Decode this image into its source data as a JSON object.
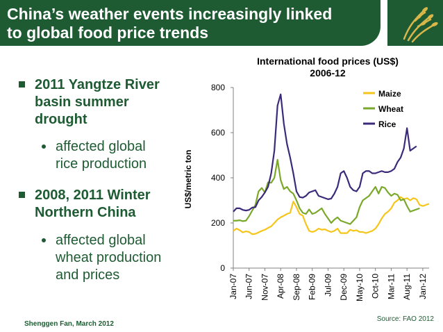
{
  "slide": {
    "title_line1": "China’s weather events increasingly linked",
    "title_line2": "to global food price trends",
    "bullets": [
      {
        "lines": [
          "2011 Yangtze River",
          "basin summer",
          "drought"
        ],
        "sub": [
          "affected global",
          "rice production"
        ]
      },
      {
        "lines": [
          "2008, 2011 Winter",
          "Northern China"
        ],
        "sub": [
          "affected global",
          "wheat production",
          "and prices"
        ]
      }
    ],
    "footer": "Shenggen Fan, March 2012",
    "source": "Source: FAO 2012",
    "colors": {
      "brand": "#1e5b33",
      "maize": "#f5c518",
      "wheat": "#7aa82a",
      "rice": "#3b2a7a"
    }
  },
  "chart_data": {
    "type": "line",
    "title": "International food prices (US$)",
    "subtitle": "2006-12",
    "ylabel": "US$/metric ton",
    "ylim": [
      0,
      800
    ],
    "yticks": [
      0,
      200,
      400,
      600,
      800
    ],
    "xticks": [
      "Jan-07",
      "Jun-07",
      "Nov-07",
      "Apr-08",
      "Sep-08",
      "Feb-09",
      "Jul-09",
      "Dec-09",
      "May-10",
      "Oct-10",
      "Mar-11",
      "Aug-11",
      "Jan-12"
    ],
    "x_months_from_jan07": [
      0,
      5,
      10,
      15,
      20,
      25,
      30,
      35,
      40,
      45,
      50,
      55,
      60
    ],
    "legend_position": "top-right",
    "series": [
      {
        "name": "Maize",
        "values": [
          165,
          175,
          168,
          158,
          163,
          160,
          150,
          152,
          158,
          165,
          170,
          178,
          185,
          200,
          215,
          225,
          232,
          240,
          245,
          295,
          270,
          240,
          232,
          195,
          165,
          160,
          165,
          175,
          170,
          172,
          165,
          160,
          165,
          175,
          155,
          155,
          155,
          170,
          165,
          168,
          160,
          160,
          155,
          160,
          165,
          175,
          195,
          220,
          240,
          250,
          265,
          290,
          300,
          315,
          305,
          310,
          300,
          310,
          305,
          280,
          275,
          280,
          285
        ]
      },
      {
        "name": "Wheat",
        "values": [
          210,
          210,
          212,
          208,
          210,
          230,
          255,
          280,
          340,
          355,
          335,
          380,
          378,
          400,
          480,
          390,
          350,
          360,
          340,
          330,
          300,
          265,
          245,
          240,
          260,
          240,
          245,
          255,
          265,
          240,
          220,
          200,
          215,
          225,
          210,
          205,
          200,
          195,
          210,
          225,
          270,
          300,
          310,
          320,
          340,
          360,
          330,
          360,
          355,
          335,
          320,
          330,
          325,
          300,
          305,
          275,
          250,
          255,
          260,
          265
        ]
      },
      {
        "name": "Rice",
        "values": [
          250,
          265,
          265,
          258,
          255,
          258,
          268,
          270,
          300,
          315,
          335,
          360,
          420,
          520,
          720,
          770,
          640,
          550,
          490,
          420,
          340,
          315,
          312,
          320,
          335,
          340,
          345,
          320,
          315,
          310,
          305,
          308,
          330,
          360,
          420,
          430,
          400,
          360,
          345,
          340,
          360,
          420,
          430,
          430,
          420,
          420,
          425,
          430,
          425,
          425,
          430,
          440,
          470,
          490,
          530,
          620,
          520,
          530,
          540
        ]
      }
    ]
  }
}
